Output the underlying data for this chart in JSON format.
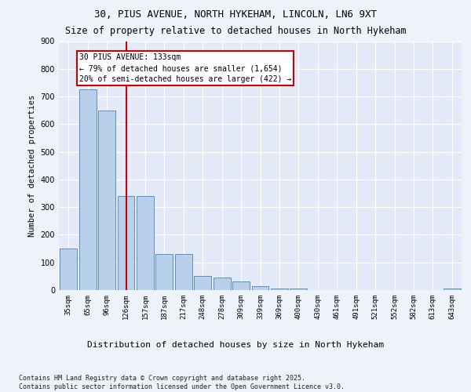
{
  "title_line1": "30, PIUS AVENUE, NORTH HYKEHAM, LINCOLN, LN6 9XT",
  "title_line2": "Size of property relative to detached houses in North Hykeham",
  "xlabel": "Distribution of detached houses by size in North Hykeham",
  "ylabel": "Number of detached properties",
  "categories": [
    "35sqm",
    "65sqm",
    "96sqm",
    "126sqm",
    "157sqm",
    "187sqm",
    "217sqm",
    "248sqm",
    "278sqm",
    "309sqm",
    "339sqm",
    "369sqm",
    "400sqm",
    "430sqm",
    "461sqm",
    "491sqm",
    "521sqm",
    "552sqm",
    "582sqm",
    "613sqm",
    "643sqm"
  ],
  "values": [
    150,
    725,
    650,
    340,
    340,
    130,
    130,
    50,
    45,
    30,
    15,
    5,
    5,
    0,
    0,
    0,
    0,
    0,
    0,
    0,
    5
  ],
  "bar_color": "#b8d0ea",
  "bar_edge_color": "#5a8fc0",
  "vline_color": "#cc0000",
  "vline_x": 3.5,
  "annotation_text": "30 PIUS AVENUE: 133sqm\n← 79% of detached houses are smaller (1,654)\n20% of semi-detached houses are larger (422) →",
  "annotation_box_color": "#cc0000",
  "annotation_fontsize": 7,
  "background_color": "#eef2fb",
  "plot_bg_color": "#e4eaf7",
  "grid_color": "#ffffff",
  "footer_text": "Contains HM Land Registry data © Crown copyright and database right 2025.\nContains public sector information licensed under the Open Government Licence v3.0.",
  "ylim": [
    0,
    900
  ],
  "yticks": [
    0,
    100,
    200,
    300,
    400,
    500,
    600,
    700,
    800,
    900
  ],
  "title1_fontsize": 9,
  "title2_fontsize": 8.5,
  "ylabel_fontsize": 7.5,
  "xlabel_fontsize": 8,
  "tick_fontsize": 6.5,
  "footer_fontsize": 6
}
